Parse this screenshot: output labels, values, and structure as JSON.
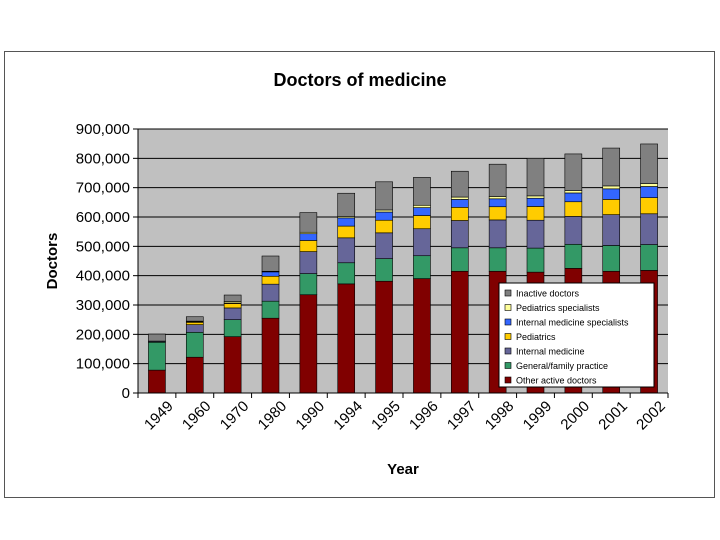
{
  "chart_data": {
    "type": "bar",
    "stacked": true,
    "title": "Doctors of medicine",
    "xlabel": "Year",
    "ylabel": "Doctors",
    "ylim": [
      0,
      900000
    ],
    "yticks": [
      "0",
      "100,000",
      "200,000",
      "300,000",
      "400,000",
      "500,000",
      "600,000",
      "700,000",
      "800,000",
      "900,000"
    ],
    "ytick_values": [
      0,
      100000,
      200000,
      300000,
      400000,
      500000,
      600000,
      700000,
      800000,
      900000
    ],
    "grid": true,
    "legend_position": "bottom-right inside plot",
    "plot_background": "#c0c0c0",
    "categories": [
      "1949",
      "1960",
      "1970",
      "1980",
      "1990",
      "1994",
      "1995",
      "1996",
      "1997",
      "1998",
      "1999",
      "2000",
      "2001",
      "2002"
    ],
    "series": [
      {
        "name": "Other active doctors",
        "color": "#800000",
        "values": [
          78000,
          122000,
          192000,
          255000,
          335000,
          372000,
          381000,
          390000,
          415000,
          415000,
          412000,
          425000,
          415000,
          418000
        ]
      },
      {
        "name": "General/family practice",
        "color": "#339966",
        "values": [
          95000,
          85000,
          58000,
          58000,
          72000,
          72000,
          77000,
          78000,
          80000,
          80000,
          82000,
          82000,
          88000,
          88000
        ]
      },
      {
        "name": "Internal medicine",
        "color": "#666699",
        "values": [
          3000,
          26000,
          40000,
          58000,
          75000,
          85000,
          88000,
          92000,
          93000,
          95000,
          95000,
          95000,
          105000,
          105000
        ]
      },
      {
        "name": "Pediatrics",
        "color": "#ffcc00",
        "values": [
          1000,
          8000,
          15000,
          27000,
          38000,
          40000,
          43000,
          45000,
          45000,
          45000,
          47000,
          50000,
          52000,
          55000
        ]
      },
      {
        "name": "Internal medicine specialists",
        "color": "#3366ff",
        "values": [
          0,
          2000,
          2000,
          15000,
          23000,
          28000,
          28000,
          27000,
          27000,
          27000,
          28000,
          30000,
          36000,
          38000
        ]
      },
      {
        "name": "Pediatrics specialists",
        "color": "#ffff99",
        "values": [
          0,
          2000,
          5000,
          2000,
          5000,
          5000,
          7000,
          8000,
          8000,
          8000,
          8000,
          8000,
          10000,
          10000
        ]
      },
      {
        "name": "Inactive doctors",
        "color": "#808080",
        "values": [
          24000,
          15000,
          22000,
          52000,
          67000,
          79000,
          96000,
          95000,
          88000,
          110000,
          128000,
          125000,
          129000,
          135000
        ]
      }
    ]
  }
}
